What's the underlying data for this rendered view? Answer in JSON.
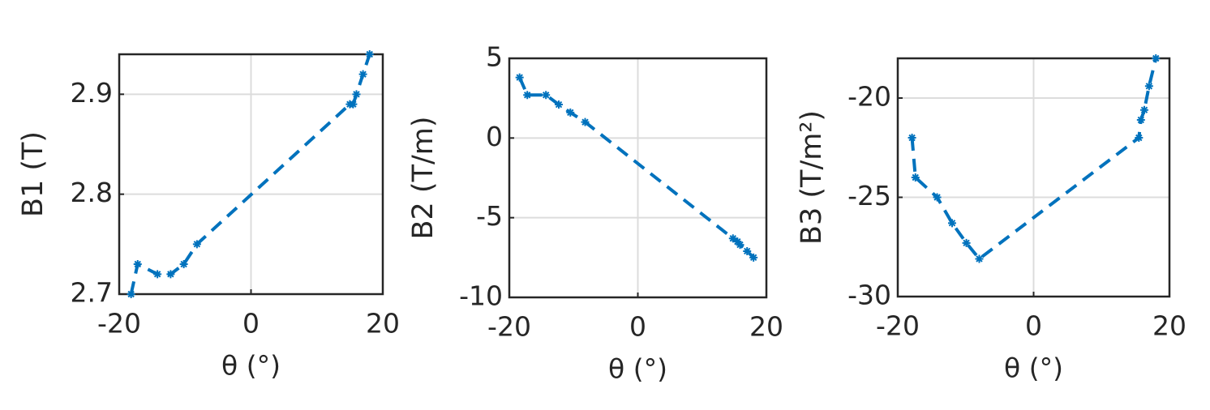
{
  "chart_data": [
    {
      "type": "line",
      "ylabel": "B1 (T)",
      "xlabel": "θ (°)",
      "x": [
        -18.2,
        -17.2,
        -14.2,
        -12.2,
        -10.2,
        -8.2,
        15,
        15.5,
        16,
        17,
        18
      ],
      "series": [
        {
          "color": "#0072bd",
          "values": [
            2.7,
            2.73,
            2.72,
            2.72,
            2.73,
            2.75,
            2.89,
            2.89,
            2.9,
            2.92,
            2.94
          ]
        }
      ],
      "xlim": [
        -20,
        20
      ],
      "xticks": [
        -20,
        0,
        20
      ],
      "ylim": [
        2.7,
        2.94
      ],
      "yticks": [
        2.7,
        2.8,
        2.9
      ],
      "grid": true
    },
    {
      "type": "line",
      "ylabel": "B2 (T/m)",
      "xlabel": "θ (°)",
      "x": [
        -18.4,
        -17.2,
        -14.3,
        -12.3,
        -10.5,
        -8.2,
        14.8,
        15.5,
        15.9,
        17,
        18
      ],
      "series": [
        {
          "color": "#0072bd",
          "values": [
            3.8,
            2.7,
            2.7,
            2.1,
            1.6,
            1.0,
            -6.3,
            -6.5,
            -6.7,
            -7.1,
            -7.5
          ]
        }
      ],
      "xlim": [
        -20,
        20
      ],
      "xticks": [
        -20,
        0,
        20
      ],
      "ylim": [
        -10,
        5
      ],
      "yticks": [
        -10,
        -5,
        0,
        5
      ],
      "grid": true
    },
    {
      "type": "line",
      "ylabel": "B3 (T/m²)",
      "xlabel": "θ (°)",
      "x": [
        -17.9,
        -17.4,
        -14.2,
        -12,
        -9.9,
        -8,
        15.5,
        15.8,
        16.3,
        17,
        18
      ],
      "series": [
        {
          "color": "#0072bd",
          "values": [
            -22.0,
            -24.0,
            -25.0,
            -26.3,
            -27.3,
            -28.1,
            -22.0,
            -21.1,
            -20.6,
            -19.4,
            -18.0
          ]
        }
      ],
      "xlim": [
        -20,
        20
      ],
      "xticks": [
        -20,
        0,
        20
      ],
      "ylim": [
        -30,
        -18
      ],
      "yticks": [
        -30,
        -25,
        -20
      ],
      "grid": true
    }
  ]
}
